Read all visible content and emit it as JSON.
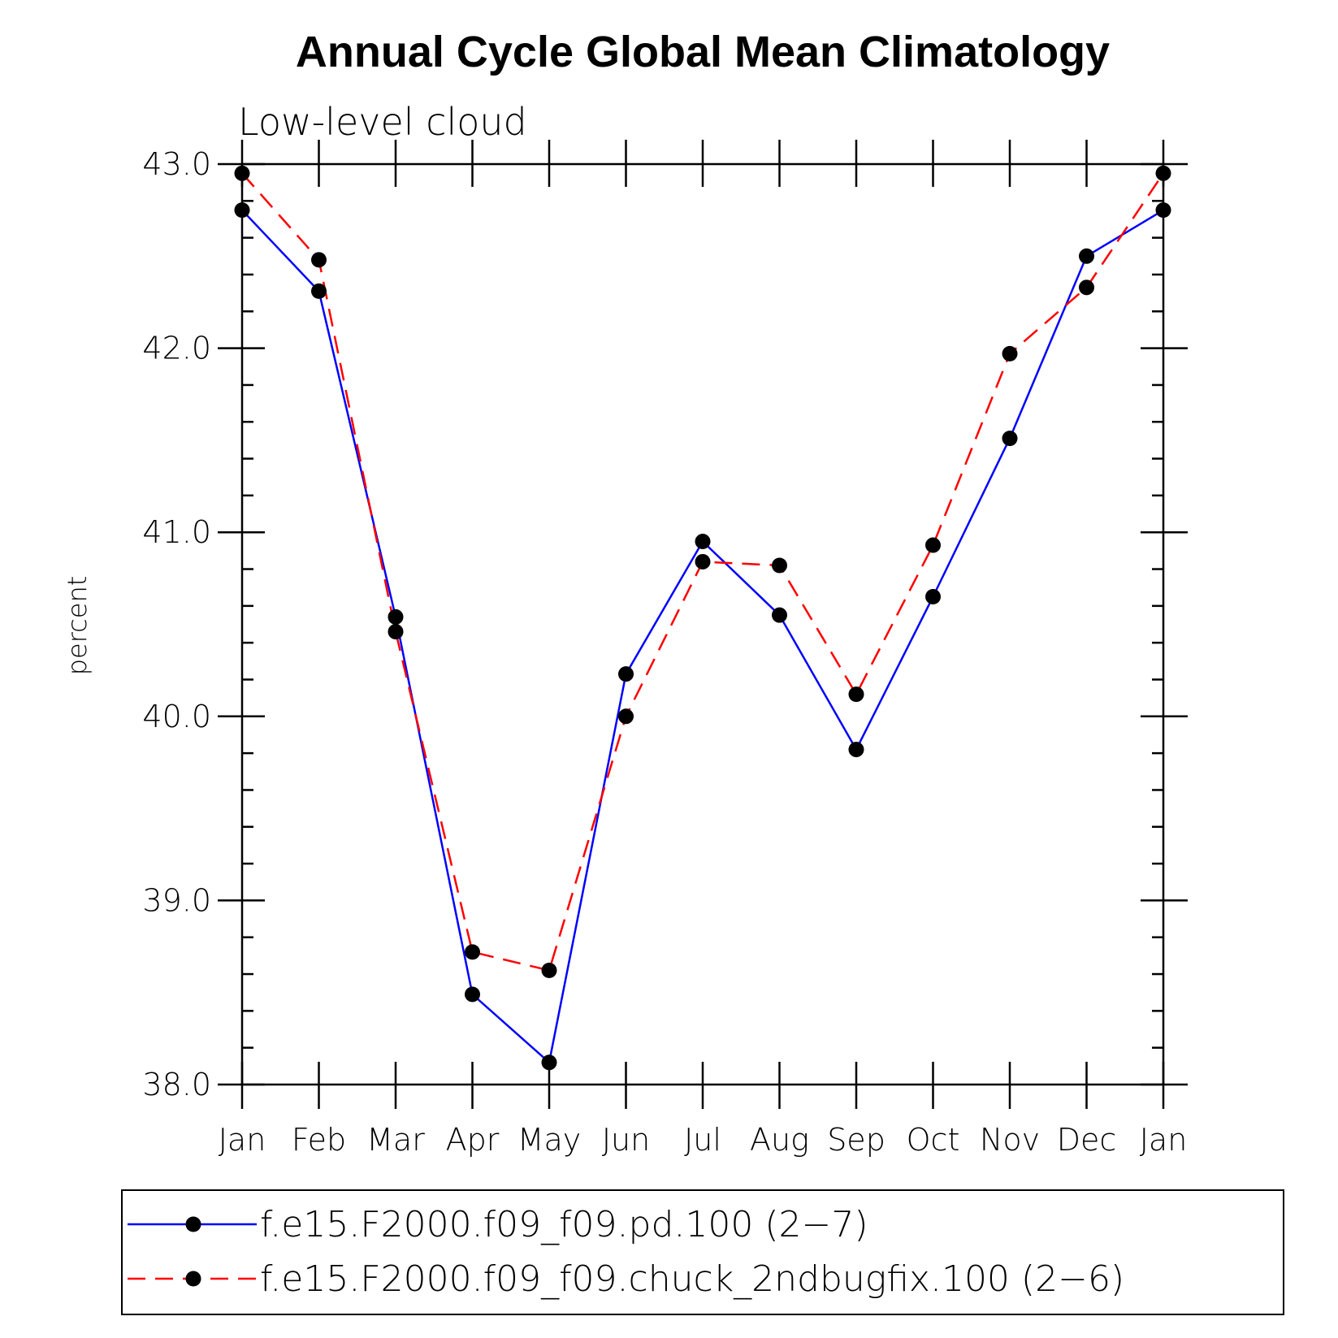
{
  "chart_data": {
    "type": "line",
    "title": "Annual Cycle Global Mean Climatology",
    "subtitle": "Low-level cloud",
    "ylabel": "percent",
    "xlabel": "",
    "categories": [
      "Jan",
      "Feb",
      "Mar",
      "Apr",
      "May",
      "Jun",
      "Jul",
      "Aug",
      "Sep",
      "Oct",
      "Nov",
      "Dec",
      "Jan"
    ],
    "ylim": [
      38.0,
      43.0
    ],
    "yticks": [
      "38.0",
      "39.0",
      "40.0",
      "41.0",
      "42.0",
      "43.0"
    ],
    "grid": false,
    "legend_position": "bottom",
    "series": [
      {
        "name": "f.e15.F2000.f09_f09.pd.100 (2−7)",
        "color": "#0000ff",
        "dash": "solid",
        "values": [
          42.75,
          42.31,
          40.54,
          38.49,
          38.12,
          40.23,
          40.95,
          40.55,
          39.82,
          40.65,
          41.51,
          42.5,
          42.75
        ]
      },
      {
        "name": "f.e15.F2000.f09_f09.chuck_2ndbugfix.100 (2−6)",
        "color": "#ff0000",
        "dash": "dashed",
        "values": [
          42.95,
          42.48,
          40.46,
          38.72,
          38.62,
          40.0,
          40.84,
          40.82,
          40.12,
          40.93,
          41.97,
          42.33,
          42.95
        ]
      }
    ]
  }
}
